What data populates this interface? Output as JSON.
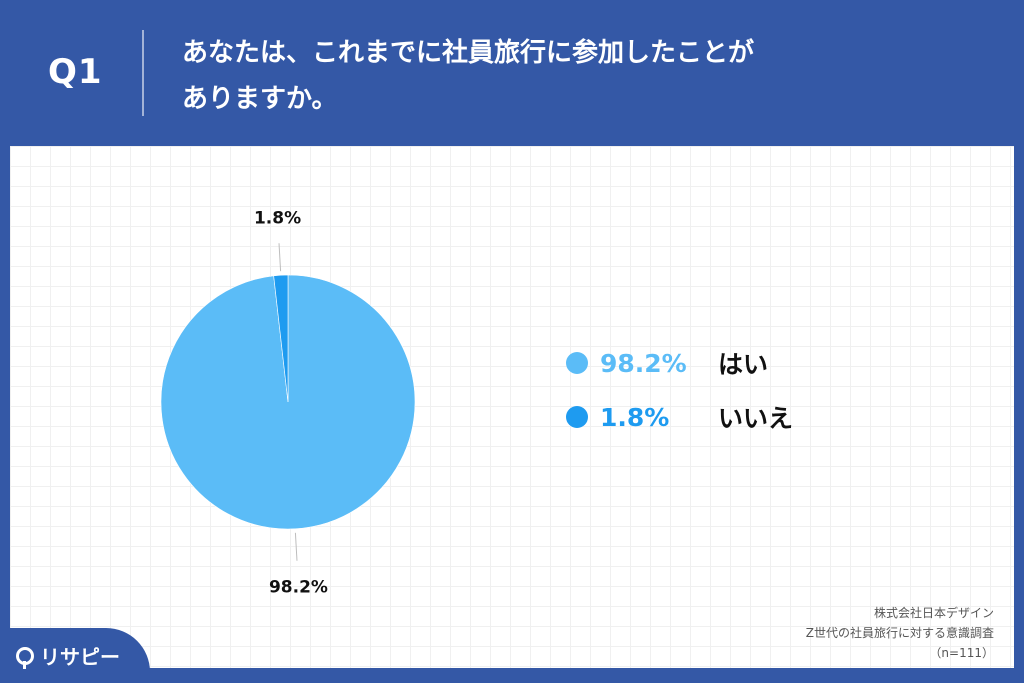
{
  "header": {
    "q_label": "Q1",
    "question_line1": "あなたは、これまでに社員旅行に参加したことが",
    "question_line2": "ありますか。"
  },
  "chart_data": {
    "type": "pie",
    "title": "",
    "slices": [
      {
        "label": "はい",
        "value": 98.2,
        "value_label": "98.2%",
        "color": "#5bbcf7"
      },
      {
        "label": "いいえ",
        "value": 1.8,
        "value_label": "1.8%",
        "color": "#1e9bf0"
      }
    ],
    "start_angle_deg": 0,
    "direction": "clockwise",
    "legend_position": "right"
  },
  "source": {
    "company": "株式会社日本デザイン",
    "survey": "Z世代の社員旅行に対する意識調査",
    "sample": "（n=111）"
  },
  "logo": {
    "text": "リサピー"
  }
}
